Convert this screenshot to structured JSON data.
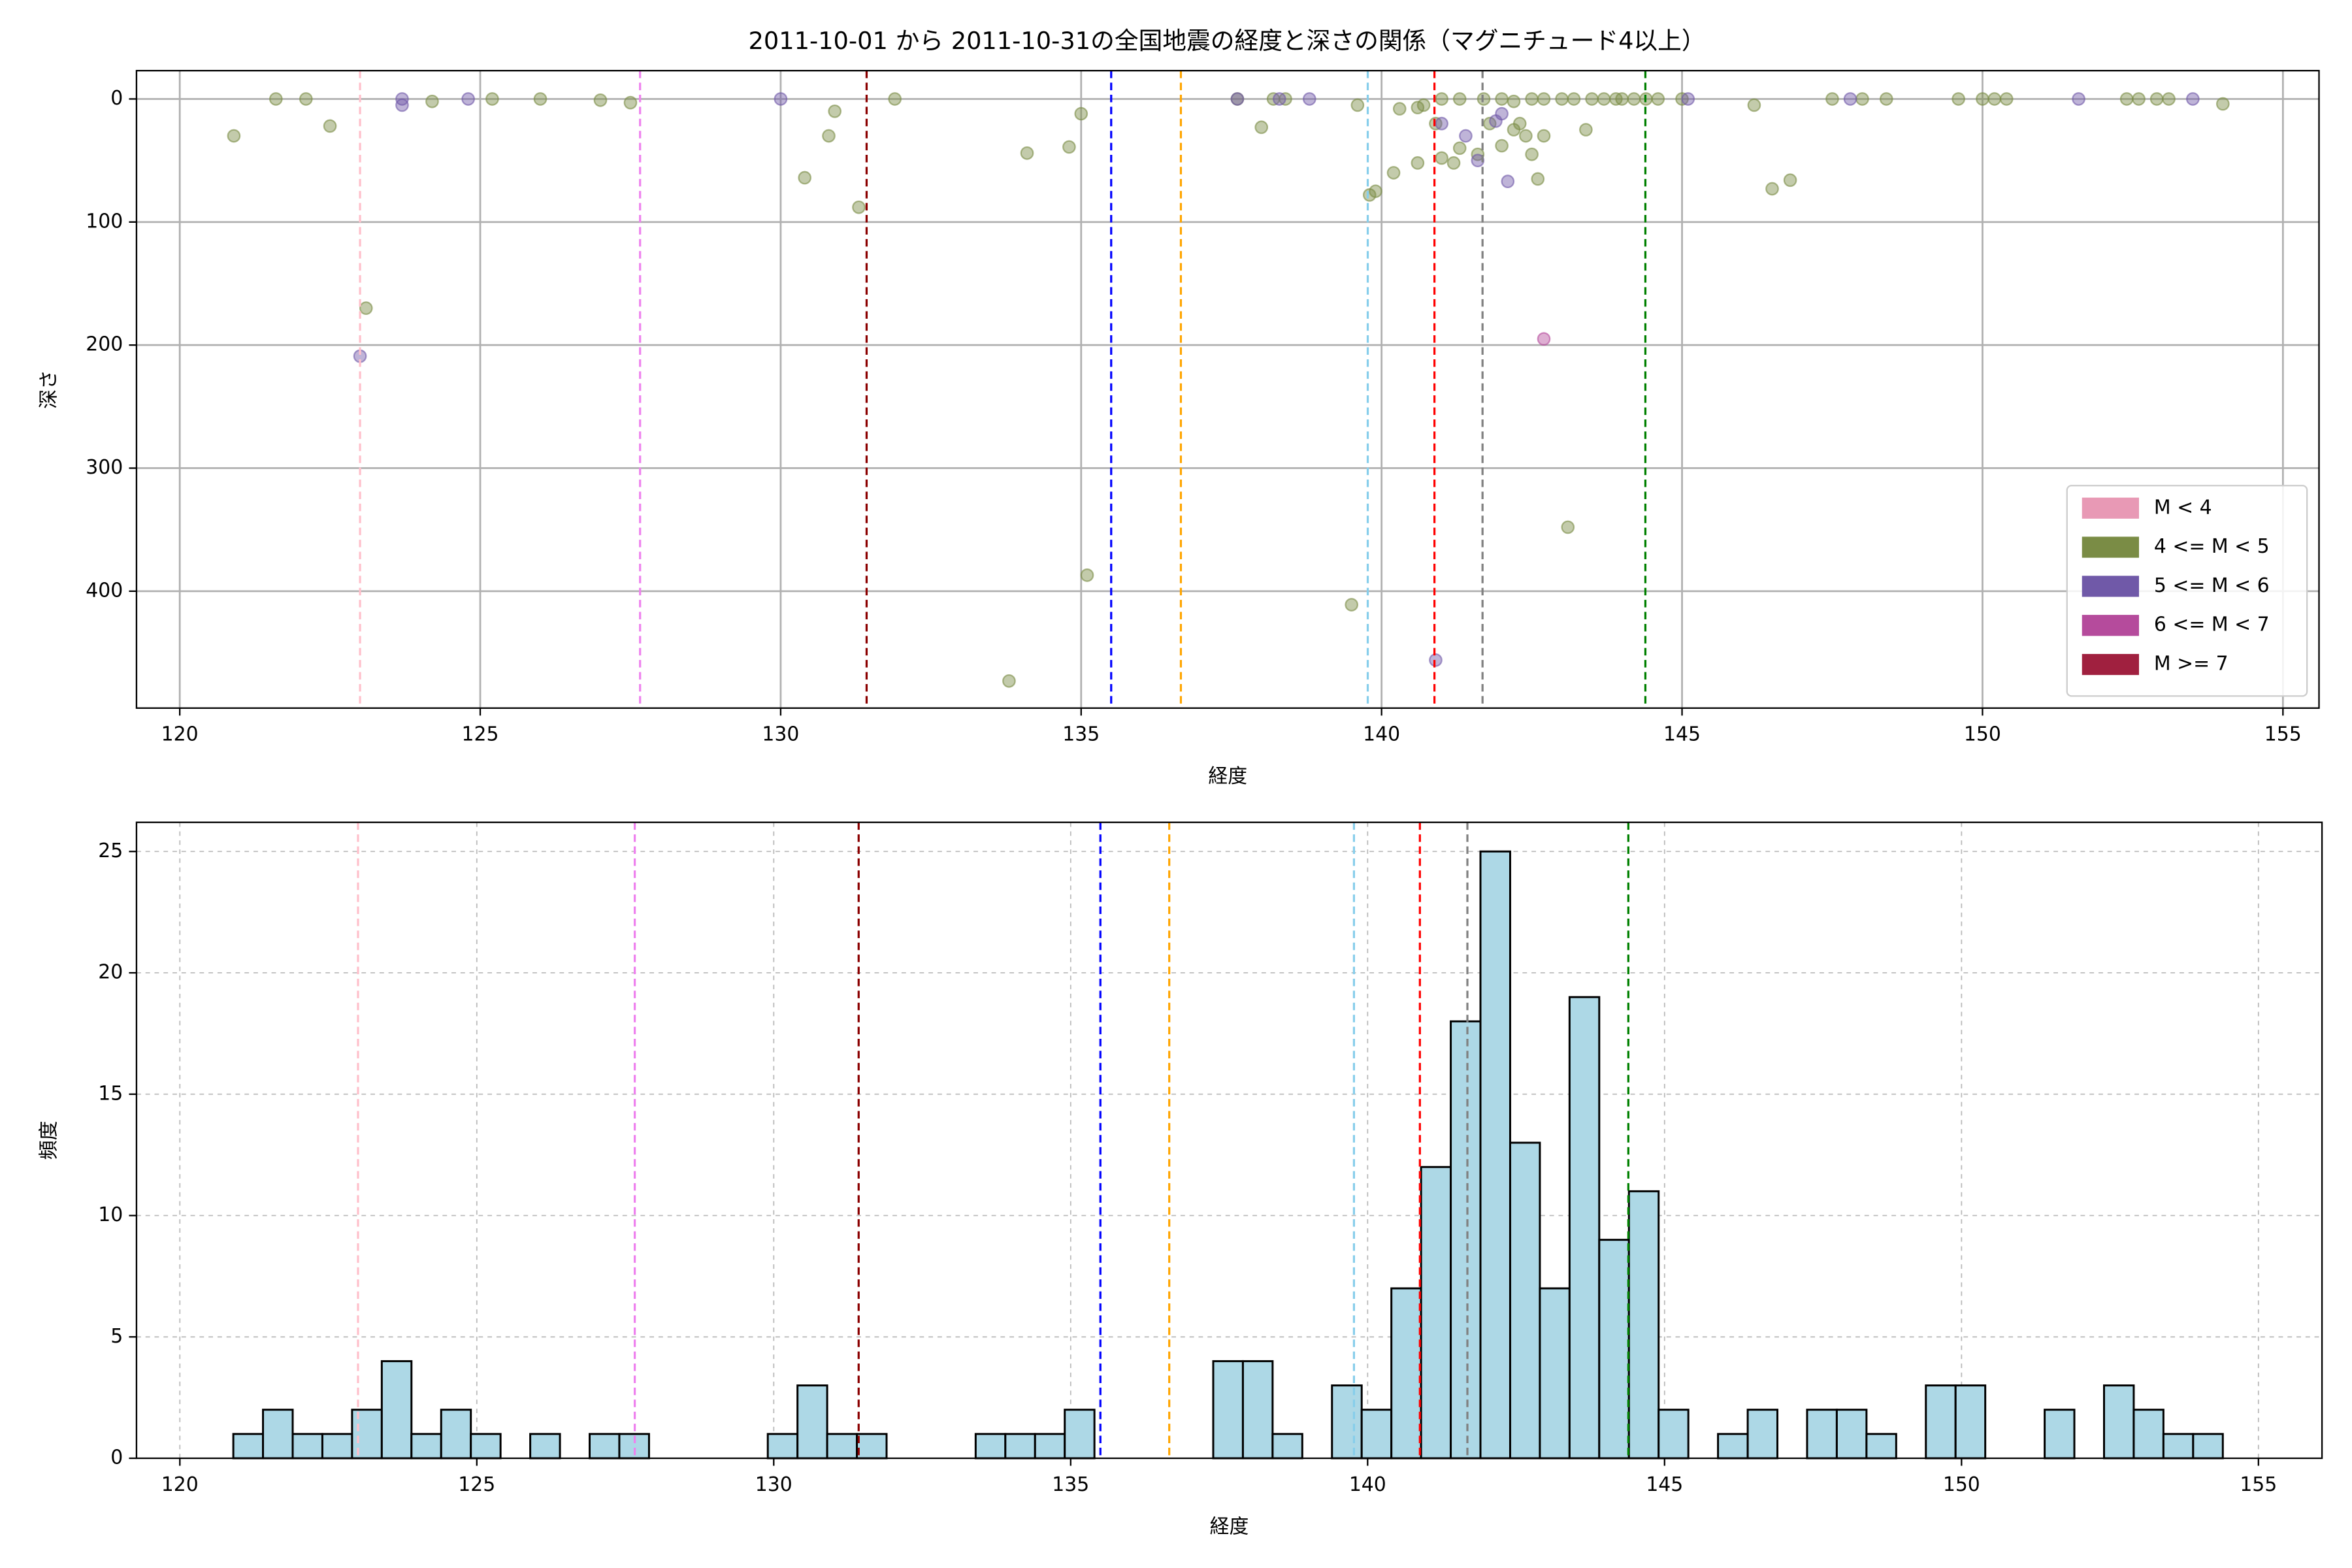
{
  "chart_data": [
    {
      "type": "scatter",
      "title": "2011-10-01 から 2011-10-31の全国地震の経度と深さの関係（マグニチュード4以上）",
      "xlabel": "経度",
      "ylabel": "深さ",
      "xlim": [
        119.28,
        155.6
      ],
      "ylim": [
        495,
        -23
      ],
      "xticks": [
        120,
        125,
        130,
        135,
        140,
        145,
        150,
        155
      ],
      "yticks": [
        0,
        100,
        200,
        300,
        400
      ],
      "grid": true,
      "grid_style": "solid",
      "legend": "lower right",
      "series": [
        {
          "name": "M < 4",
          "color": "#e899b5",
          "x": [],
          "y": []
        },
        {
          "name": "4 <= M < 5",
          "color": "#7a8c45",
          "x": [
            120.9,
            121.6,
            122.1,
            122.5,
            123.1,
            124.2,
            125.2,
            126.0,
            127.0,
            127.5,
            130.4,
            130.8,
            130.9,
            131.3,
            131.9,
            133.8,
            134.1,
            134.8,
            135.0,
            135.1,
            137.6,
            138.0,
            138.2,
            138.4,
            139.5,
            139.6,
            139.8,
            139.9,
            140.2,
            140.3,
            140.6,
            140.6,
            140.7,
            140.9,
            141.0,
            141.0,
            141.2,
            141.3,
            141.3,
            141.6,
            141.7,
            141.8,
            142.0,
            142.0,
            142.2,
            142.2,
            142.3,
            142.4,
            142.5,
            142.5,
            142.6,
            142.7,
            142.7,
            143.0,
            143.1,
            143.2,
            143.4,
            143.5,
            143.7,
            143.9,
            144.0,
            144.2,
            144.4,
            144.6,
            145.0,
            146.2,
            146.5,
            146.8,
            147.5,
            148.0,
            148.4,
            149.6,
            150.0,
            150.2,
            150.4,
            152.4,
            152.6,
            152.9,
            153.1,
            154.0
          ],
          "y": [
            30,
            0,
            0,
            22,
            170,
            2,
            0,
            0,
            1,
            3,
            64,
            30,
            10,
            88,
            0,
            473,
            44,
            39,
            12,
            387,
            0,
            23,
            0,
            0,
            411,
            5,
            78,
            75,
            60,
            8,
            7,
            52,
            5,
            20,
            0,
            48,
            52,
            0,
            40,
            45,
            0,
            20,
            0,
            38,
            2,
            25,
            20,
            30,
            0,
            45,
            65,
            30,
            0,
            0,
            348,
            0,
            25,
            0,
            0,
            0,
            0,
            0,
            0,
            0,
            0,
            5,
            73,
            66,
            0,
            0,
            0,
            0,
            0,
            0,
            0,
            0,
            0,
            0,
            0,
            4
          ]
        },
        {
          "name": "5 <= M < 6",
          "color": "#7059a8",
          "x": [
            123.0,
            123.7,
            123.7,
            124.8,
            130.0,
            137.6,
            138.3,
            138.8,
            140.9,
            141.0,
            141.4,
            141.6,
            141.9,
            142.0,
            142.1,
            145.1,
            147.8,
            151.6,
            153.5
          ],
          "y": [
            209,
            5,
            0,
            0,
            0,
            0,
            0,
            0,
            456,
            20,
            30,
            50,
            18,
            12,
            67,
            0,
            0,
            0,
            0
          ]
        },
        {
          "name": "6 <= M < 7",
          "color": "#b54b9c",
          "x": [
            142.7
          ],
          "y": [
            195
          ]
        },
        {
          "name": "M >= 7",
          "color": "#a0203f",
          "x": [],
          "y": []
        }
      ],
      "vlines": [
        {
          "x": 123.0,
          "color": "pink"
        },
        {
          "x": 127.66,
          "color": "violet"
        },
        {
          "x": 131.43,
          "color": "darkred"
        },
        {
          "x": 135.5,
          "color": "blue"
        },
        {
          "x": 136.66,
          "color": "orange"
        },
        {
          "x": 139.77,
          "color": "skyblue"
        },
        {
          "x": 140.88,
          "color": "red"
        },
        {
          "x": 141.68,
          "color": "gray"
        },
        {
          "x": 144.39,
          "color": "green"
        }
      ]
    },
    {
      "type": "histogram",
      "xlabel": "経度",
      "ylabel": "頻度",
      "xlim": [
        119.27,
        156.07
      ],
      "ylim": [
        0,
        26.2
      ],
      "xticks": [
        120,
        125,
        130,
        135,
        140,
        145,
        150,
        155
      ],
      "yticks": [
        0,
        5,
        10,
        15,
        20,
        25
      ],
      "grid": true,
      "grid_style": "dashed",
      "color": "#add8e6",
      "bins": [
        120.9,
        121.4,
        121.9,
        122.4,
        122.9,
        123.4,
        123.9,
        124.4,
        124.9,
        125.4,
        125.9,
        126.4,
        126.9,
        127.4,
        127.9,
        128.4,
        128.9,
        129.4,
        129.9,
        130.4,
        130.9,
        131.4,
        131.9,
        132.4,
        132.9,
        133.4,
        133.9,
        134.4,
        134.9,
        135.4,
        135.9,
        136.4,
        136.9,
        137.4,
        137.9,
        138.4,
        138.9,
        139.4,
        139.9,
        140.4,
        140.9,
        141.4,
        141.9,
        142.4,
        142.9,
        143.4,
        143.9,
        144.4,
        144.9,
        145.4,
        145.9,
        146.4,
        146.9,
        147.4,
        147.9,
        148.4,
        148.9,
        149.4,
        149.9,
        150.4,
        150.9,
        151.4,
        151.9,
        152.4,
        152.9,
        153.4,
        153.9,
        154.4
      ],
      "counts": [
        1,
        2,
        1,
        1,
        2,
        4,
        1,
        2,
        1,
        0,
        1,
        0,
        1,
        1,
        0,
        0,
        0,
        0,
        1,
        3,
        1,
        1,
        0,
        0,
        0,
        1,
        1,
        1,
        2,
        0,
        0,
        0,
        0,
        4,
        4,
        1,
        0,
        3,
        2,
        7,
        12,
        18,
        25,
        13,
        7,
        19,
        9,
        11,
        2,
        0,
        1,
        2,
        0,
        2,
        2,
        1,
        0,
        3,
        3,
        0,
        0,
        2,
        0,
        3,
        2,
        1,
        1
      ],
      "vlines": [
        {
          "x": 123.0,
          "color": "pink"
        },
        {
          "x": 127.66,
          "color": "violet"
        },
        {
          "x": 131.43,
          "color": "darkred"
        },
        {
          "x": 135.5,
          "color": "blue"
        },
        {
          "x": 136.66,
          "color": "orange"
        },
        {
          "x": 139.77,
          "color": "skyblue"
        },
        {
          "x": 140.88,
          "color": "red"
        },
        {
          "x": 141.68,
          "color": "gray"
        },
        {
          "x": 144.39,
          "color": "green"
        }
      ]
    }
  ]
}
